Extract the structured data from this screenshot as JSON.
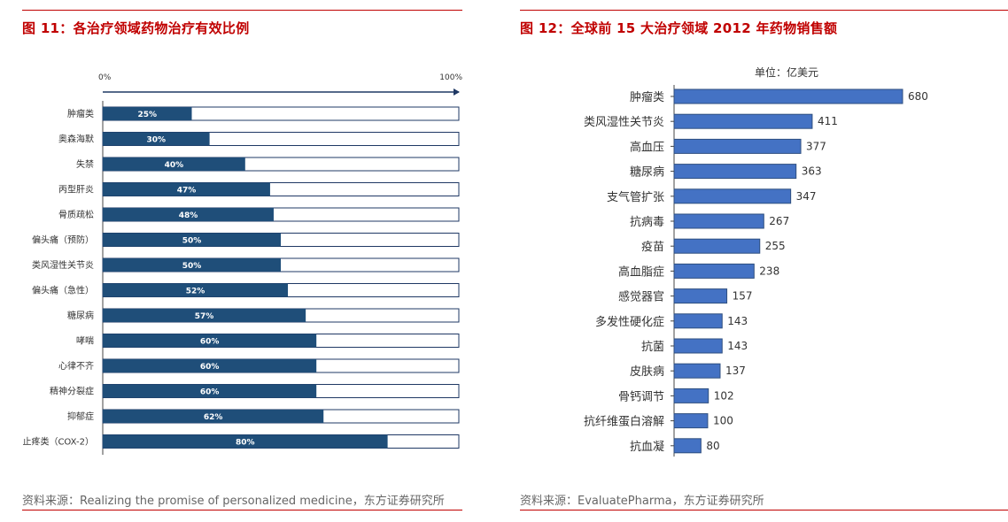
{
  "colors": {
    "accent": "#C00000",
    "bar_fill": "#1F4E79",
    "bar_fill_right": "#4472C4",
    "bar_outline": "#1F3864",
    "text": "#333333",
    "source_text": "#666666"
  },
  "left_figure": {
    "title": "图 11：各治疗领域药物治疗有效比例",
    "source": "资料来源：Realizing the promise of personalized medicine，东方证券研究所",
    "chart_data": {
      "type": "bar",
      "orientation": "horizontal",
      "stacked_to_100": true,
      "axis_min_label": "0%",
      "axis_max_label": "100%",
      "xlim": [
        0,
        100
      ],
      "categories": [
        "肿瘤类",
        "奥森海默",
        "失禁",
        "丙型肝炎",
        "骨质疏松",
        "偏头痛（预防）",
        "类风湿性关节炎",
        "偏头痛（急性）",
        "糖尿病",
        "哮喘",
        "心律不齐",
        "精神分裂症",
        "抑郁症",
        "止疼类（COX-2）"
      ],
      "values": [
        25,
        30,
        40,
        47,
        48,
        50,
        50,
        52,
        57,
        60,
        60,
        60,
        62,
        80
      ],
      "value_labels": [
        "25%",
        "30%",
        "40%",
        "47%",
        "48%",
        "50%",
        "50%",
        "52%",
        "57%",
        "60%",
        "60%",
        "60%",
        "62%",
        "80%"
      ]
    }
  },
  "right_figure": {
    "title": "图 12：全球前 15 大治疗领域 2012 年药物销售额",
    "source": "资料来源：EvaluatePharma，东方证券研究所",
    "chart_data": {
      "type": "bar",
      "orientation": "horizontal",
      "subtitle": "单位：亿美元",
      "xlim": [
        0,
        680
      ],
      "categories": [
        "肿瘤类",
        "类风湿性关节炎",
        "高血压",
        "糖尿病",
        "支气管扩张",
        "抗病毒",
        "疫苗",
        "高血脂症",
        "感觉器官",
        "多发性硬化症",
        "抗菌",
        "皮肤病",
        "骨钙调节",
        "抗纤维蛋白溶解",
        "抗血凝"
      ],
      "values": [
        680,
        411,
        377,
        363,
        347,
        267,
        255,
        238,
        157,
        143,
        143,
        137,
        102,
        100,
        80
      ]
    }
  }
}
